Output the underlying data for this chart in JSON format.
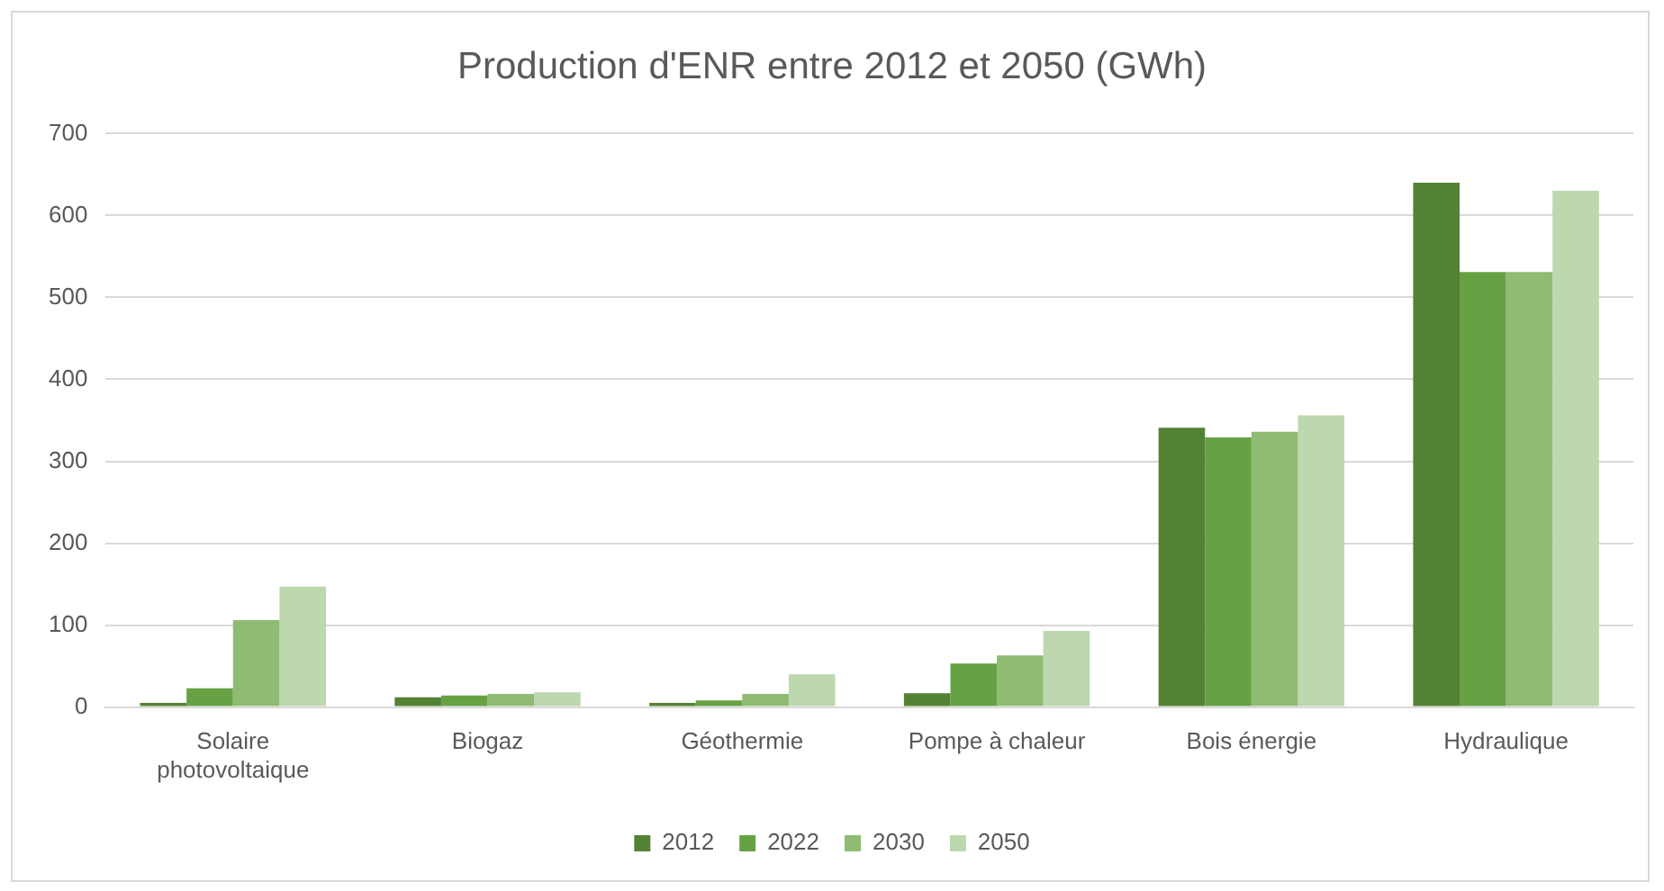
{
  "chart_data": {
    "type": "bar",
    "title": "Production d'ENR entre 2012 et 2050 (GWh)",
    "categories": [
      "Solaire photovoltaique",
      "Biogaz",
      "Géothermie",
      "Pompe à chaleur",
      "Bois énergie",
      "Hydraulique"
    ],
    "series": [
      {
        "name": "2012",
        "color": "#548235",
        "values": [
          5,
          12,
          5,
          17,
          341,
          640
        ]
      },
      {
        "name": "2022",
        "color": "#66a244",
        "values": [
          23,
          14,
          8,
          53,
          329,
          531
        ]
      },
      {
        "name": "2030",
        "color": "#8fbb73",
        "values": [
          106,
          16,
          16,
          63,
          336,
          531
        ]
      },
      {
        "name": "2050",
        "color": "#bdd7ae",
        "values": [
          147,
          18,
          40,
          93,
          356,
          630
        ]
      }
    ],
    "ylim": [
      0,
      700
    ],
    "yticks": [
      0,
      100,
      200,
      300,
      400,
      500,
      600,
      700
    ],
    "grid": "y",
    "legend": "bottom"
  }
}
